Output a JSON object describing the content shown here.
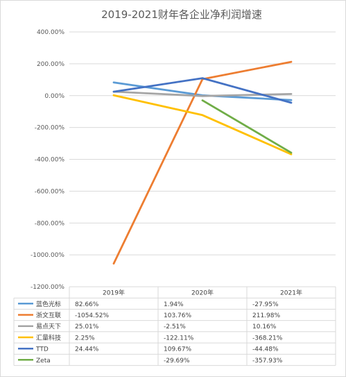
{
  "chart_data": {
    "type": "line",
    "title": "2019-2021财年各企业净利润增速",
    "categories": [
      "2019年",
      "2020年",
      "2021年"
    ],
    "y_ticks": [
      "400.00%",
      "200.00%",
      "0.00%",
      "-200.00%",
      "-400.00%",
      "-600.00%",
      "-800.00%",
      "-1000.00%",
      "-1200.00%"
    ],
    "ylim": [
      -1200,
      400
    ],
    "unit": "%",
    "grid": true,
    "legend": "data-table",
    "series": [
      {
        "name": "蓝色光标",
        "color": "#5B9BD5",
        "values": [
          82.66,
          1.94,
          -27.95
        ],
        "labels": [
          "82.66%",
          "1.94%",
          "-27.95%"
        ]
      },
      {
        "name": "浙文互联",
        "color": "#ED7D31",
        "values": [
          -1054.52,
          103.76,
          211.98
        ],
        "labels": [
          "-1054.52%",
          "103.76%",
          "211.98%"
        ]
      },
      {
        "name": "易点天下",
        "color": "#A5A5A5",
        "values": [
          25.01,
          -2.51,
          10.16
        ],
        "labels": [
          "25.01%",
          "-2.51%",
          "10.16%"
        ]
      },
      {
        "name": "汇量科技",
        "color": "#FFC000",
        "values": [
          2.25,
          -122.11,
          -368.21
        ],
        "labels": [
          "2.25%",
          "-122.11%",
          "-368.21%"
        ]
      },
      {
        "name": "TTD",
        "color": "#4472C4",
        "values": [
          24.44,
          109.67,
          -44.48
        ],
        "labels": [
          "24.44%",
          "109.67%",
          "-44.48%"
        ]
      },
      {
        "name": "Zeta",
        "color": "#70AD47",
        "values": [
          null,
          -29.69,
          -357.93
        ],
        "labels": [
          "",
          "-29.69%",
          "-357.93%"
        ]
      }
    ]
  }
}
